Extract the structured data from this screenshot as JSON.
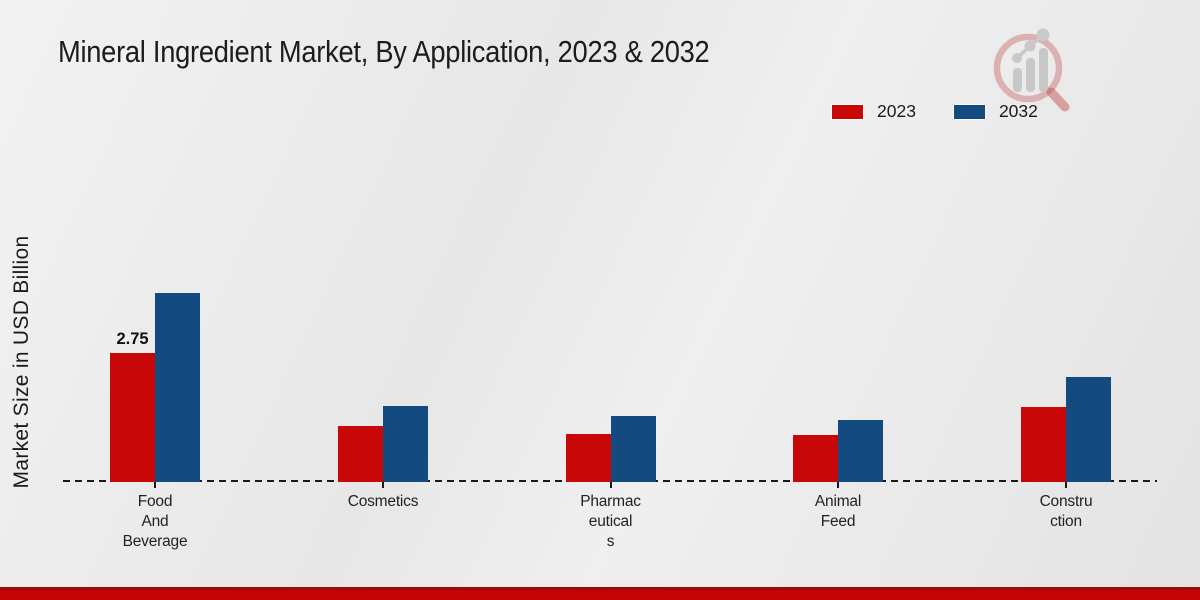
{
  "title": "Mineral Ingredient Market, By Application, 2023 & 2032",
  "y_axis_label": "Market Size in USD Billion",
  "legend": {
    "items": [
      {
        "label": "2023",
        "color": "#c80808"
      },
      {
        "label": "2032",
        "color": "#134a80"
      }
    ]
  },
  "chart_data": {
    "type": "bar",
    "title": "Mineral Ingredient Market, By Application, 2023 & 2032",
    "ylabel": "Market Size in USD Billion",
    "xlabel": "",
    "categories": [
      "Food And Beverage",
      "Cosmetics",
      "Pharmaceuticals",
      "Animal Feed",
      "Construction"
    ],
    "category_label_lines": [
      [
        "Food",
        "And",
        "Beverage"
      ],
      [
        "Cosmetics"
      ],
      [
        "Pharmac",
        "eutical",
        "s"
      ],
      [
        "Animal",
        "Feed"
      ],
      [
        "Constru",
        "ction"
      ]
    ],
    "series": [
      {
        "name": "2023",
        "color": "#c80808",
        "values": [
          2.75,
          1.2,
          1.02,
          1.0,
          1.6
        ]
      },
      {
        "name": "2032",
        "color": "#134a80",
        "values": [
          4.03,
          1.61,
          1.41,
          1.32,
          2.24
        ]
      }
    ],
    "annotations": [
      {
        "category_index": 0,
        "series_index": 0,
        "text": "2.75"
      }
    ],
    "ylim": [
      0,
      4.5
    ],
    "grid": false,
    "baseline_style": "dashed",
    "legend_position": "top-right"
  },
  "colors": {
    "series_2023": "#c80808",
    "series_2032": "#134a80",
    "footer_band": "#c40404",
    "footer_band_edge": "#9a0b0b",
    "axis_line": "#1a1a1a",
    "text": "#1c1c1c",
    "background": "#e9e9e9"
  },
  "watermark": {
    "name": "magnifier-bar-chart-logo"
  }
}
